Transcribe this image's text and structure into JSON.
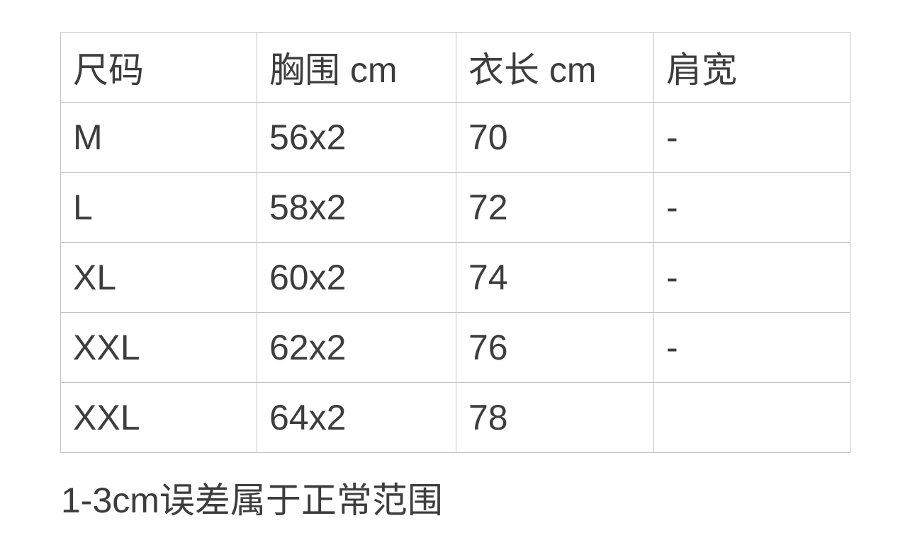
{
  "page": {
    "background_color": "#ffffff",
    "text_color": "#3d3d3d",
    "border_color": "#c3c3c3"
  },
  "size_table": {
    "columns": [
      "尺码",
      "胸围 cm",
      "衣长 cm",
      "肩宽"
    ],
    "rows": [
      {
        "size": "M",
        "chest": "56x2",
        "length": "70",
        "shoulder": "-"
      },
      {
        "size": "L",
        "chest": "58x2",
        "length": "72",
        "shoulder": "-"
      },
      {
        "size": "XL",
        "chest": "60x2",
        "length": "74",
        "shoulder": "-"
      },
      {
        "size": "XXL",
        "chest": "62x2",
        "length": "76",
        "shoulder": "-"
      },
      {
        "size": "XXL",
        "chest": "64x2",
        "length": "78",
        "shoulder": ""
      }
    ]
  },
  "footnote": {
    "text": "1-3cm误差属于正常范围"
  }
}
